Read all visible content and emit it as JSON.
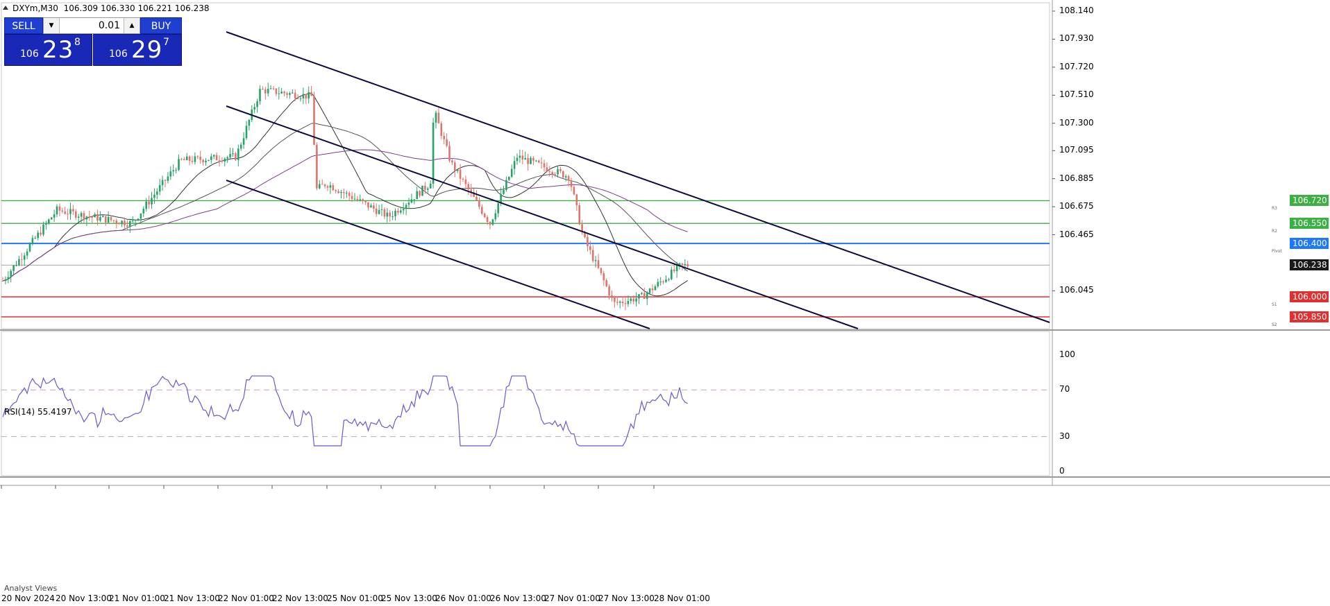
{
  "window": {
    "symbol_label": "DXYm,M30",
    "ohlc": "106.309 106.330 106.221 106.238"
  },
  "trade_panel": {
    "sell_label": "SELL",
    "buy_label": "BUY",
    "lot": "0.01",
    "bid": {
      "small": "106",
      "big": "23",
      "sup": "8"
    },
    "ask": {
      "small": "106",
      "big": "29",
      "sup": "7"
    }
  },
  "price_axis": {
    "ticks": [
      "108.140",
      "107.930",
      "107.720",
      "107.510",
      "107.300",
      "107.095",
      "106.885",
      "106.675",
      "106.465",
      "106.045"
    ],
    "current_price": "106.238"
  },
  "levels": [
    {
      "value": 106.72,
      "label": "106.720",
      "tag": "R3",
      "color": "#3cb043"
    },
    {
      "value": 106.55,
      "label": "106.550",
      "tag": "R2",
      "color": "#3cb043"
    },
    {
      "value": 106.4,
      "label": "106.400",
      "tag": "Pivot",
      "color": "#1e78ff"
    },
    {
      "value": 106.0,
      "label": "106.000",
      "tag": "S1",
      "color": "#e03030"
    },
    {
      "value": 105.85,
      "label": "105.850",
      "tag": "S2",
      "color": "#e03030"
    }
  ],
  "time_axis": [
    "20 Nov 2024",
    "20 Nov 13:00",
    "21 Nov 01:00",
    "21 Nov 13:00",
    "22 Nov 01:00",
    "22 Nov 13:00",
    "25 Nov 01:00",
    "25 Nov 13:00",
    "26 Nov 01:00",
    "26 Nov 13:00",
    "27 Nov 01:00",
    "27 Nov 13:00",
    "28 Nov 01:00"
  ],
  "rsi": {
    "title": "RSI(14) 55.4197",
    "ticks": [
      "100",
      "70",
      "30",
      "0"
    ],
    "levels": [
      70,
      30
    ]
  },
  "footer": {
    "analyst_tab": "Analyst Views"
  },
  "colors": {
    "bull": "#26a269",
    "bear": "#e0736a",
    "channel": "#0c0c3c",
    "ma_fast": "#333333",
    "ma_slow": "#7a3e8a",
    "rsi_line": "#6a5acd",
    "current_price_line": "#888888"
  },
  "chart_data": {
    "type": "candlestick",
    "symbol": "DXYm",
    "timeframe": "M30",
    "y_range": [
      105.85,
      108.14
    ],
    "close_keypoints": [
      {
        "t": "20 Nov 2024",
        "price": 106.12
      },
      {
        "t": "20 Nov 13:00",
        "price": 106.65
      },
      {
        "t": "20 Nov 21:00",
        "price": 106.6
      },
      {
        "t": "21 Nov 01:00",
        "price": 106.55
      },
      {
        "t": "21 Nov 13:00",
        "price": 107.02
      },
      {
        "t": "22 Nov 01:00",
        "price": 107.05
      },
      {
        "t": "22 Nov 04:00",
        "price": 107.55
      },
      {
        "t": "22 Nov 13:00",
        "price": 107.5
      },
      {
        "t": "22 Nov 18:00",
        "price": 106.8
      },
      {
        "t": "25 Nov 01:00",
        "price": 106.85
      },
      {
        "t": "25 Nov 07:00",
        "price": 106.6
      },
      {
        "t": "25 Nov 13:00",
        "price": 106.85
      },
      {
        "t": "26 Nov 01:00",
        "price": 107.4
      },
      {
        "t": "26 Nov 08:00",
        "price": 107.0
      },
      {
        "t": "26 Nov 12:00",
        "price": 106.55
      },
      {
        "t": "26 Nov 18:00",
        "price": 107.05
      },
      {
        "t": "27 Nov 01:00",
        "price": 106.9
      },
      {
        "t": "27 Nov 09:00",
        "price": 106.45
      },
      {
        "t": "27 Nov 13:00",
        "price": 105.95
      },
      {
        "t": "27 Nov 20:00",
        "price": 106.0
      },
      {
        "t": "28 Nov 01:00",
        "price": 106.23
      },
      {
        "t": "28 Nov 03:00",
        "price": 106.238
      }
    ]
  }
}
